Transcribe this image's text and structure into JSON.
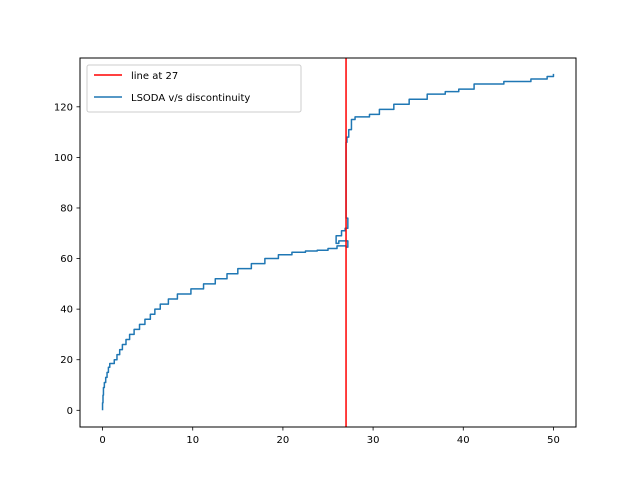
{
  "chart_data": {
    "type": "line",
    "title": "",
    "xlabel": "",
    "ylabel": "",
    "xlim": [
      -2.5,
      52.5
    ],
    "ylim": [
      -6.6,
      139.3
    ],
    "xticks": [
      0,
      10,
      20,
      30,
      40,
      50
    ],
    "yticks": [
      0,
      20,
      40,
      60,
      80,
      100,
      120
    ],
    "grid": false,
    "legend_position": "upper-left",
    "vertical_line": {
      "x": 27,
      "name": "line at 27",
      "color": "#ff0000"
    },
    "series": [
      {
        "name": "LSODA v/s discontinuity",
        "color": "#1f77b4",
        "x": [
          0,
          0.05,
          0.1,
          0.2,
          0.35,
          0.5,
          0.65,
          0.8,
          1.3,
          1.6,
          1.9,
          2.2,
          2.6,
          3.0,
          3.5,
          4.1,
          4.7,
          5.3,
          5.8,
          6.4,
          7.3,
          8.3,
          9.8,
          11.2,
          12.5,
          13.8,
          15.0,
          16.5,
          18.0,
          19.5,
          21.0,
          22.5,
          23.8,
          25.0,
          26.0,
          27.0,
          27.2,
          26.2,
          25.9,
          26.5,
          26.9,
          27.2,
          27.2,
          27.0,
          27.0,
          27.0,
          27.0,
          27.1,
          27.3,
          27.6,
          28.0,
          29.6,
          30.7,
          32.3,
          34.0,
          36.0,
          38.0,
          39.5,
          41.2,
          44.5,
          47.5,
          49.3,
          50.0,
          50.0
        ],
        "y": [
          0,
          3,
          6,
          9,
          11,
          13,
          15,
          17,
          18.5,
          20,
          22,
          24,
          26,
          28,
          30,
          32,
          34,
          36,
          38,
          40,
          42,
          44,
          46,
          48,
          50,
          52,
          54,
          56,
          58,
          60,
          61.5,
          62.5,
          63,
          63.3,
          64,
          65,
          64.5,
          67,
          66,
          69,
          71,
          72,
          75,
          76,
          78,
          81,
          100,
          106,
          108,
          111,
          115,
          116,
          117,
          119,
          121,
          123,
          125,
          126,
          127,
          129,
          130,
          131,
          132,
          133
        ]
      }
    ]
  }
}
